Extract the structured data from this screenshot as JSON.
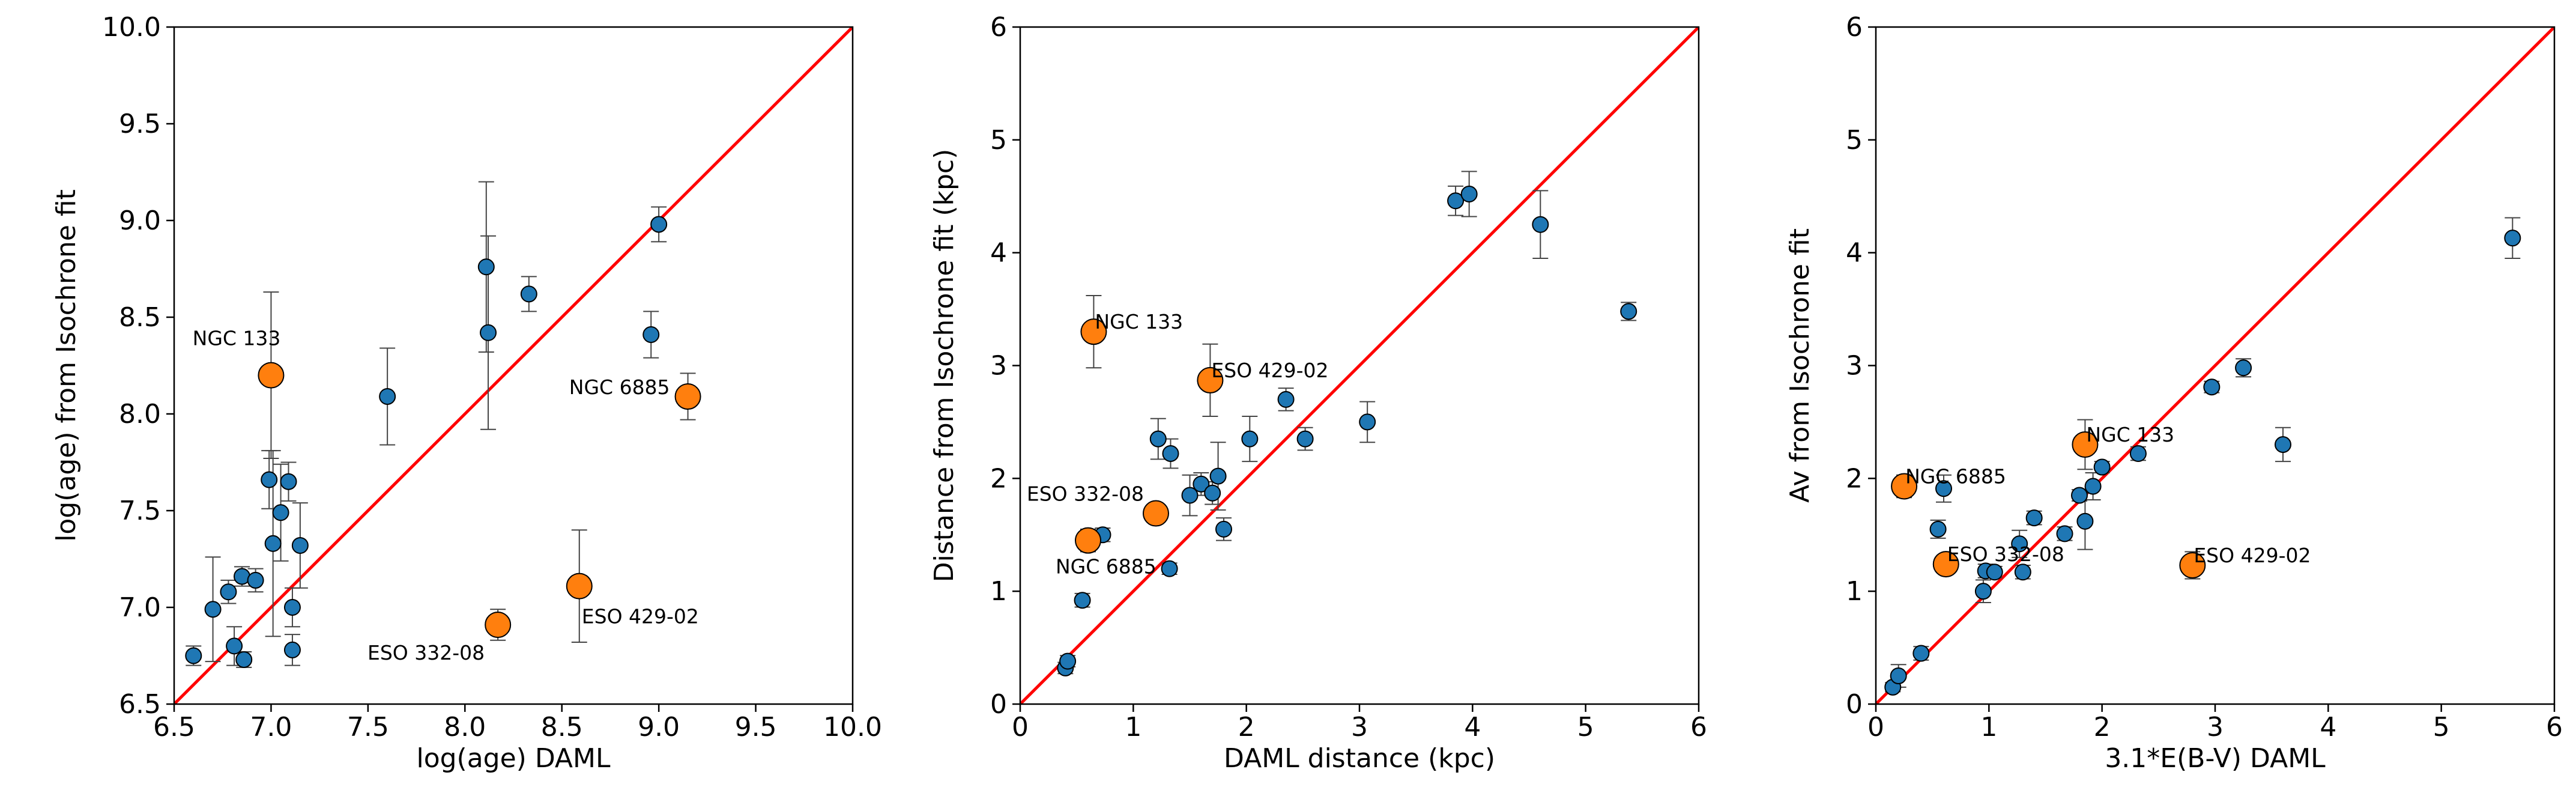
{
  "colors": {
    "point": "#1f77b4",
    "highlight": "#ff7f0e",
    "identity_line": "#ff0000",
    "errorbar": "#444444",
    "edge": "#000000"
  },
  "chart_data": [
    {
      "type": "scatter",
      "title": "",
      "xlabel": "log(age) DAML",
      "ylabel": "log(age) from Isochrone fit",
      "xlim": [
        6.5,
        10.0
      ],
      "ylim": [
        6.5,
        10.0
      ],
      "xticks": [
        6.5,
        7.0,
        7.5,
        8.0,
        8.5,
        9.0,
        9.5,
        10.0
      ],
      "yticks": [
        6.5,
        7.0,
        7.5,
        8.0,
        8.5,
        9.0,
        9.5,
        10.0
      ],
      "tick_labels_x": [
        "6.5",
        "7.0",
        "7.5",
        "8.0",
        "8.5",
        "9.0",
        "9.5",
        "10.0"
      ],
      "tick_labels_y": [
        "6.5",
        "7.0",
        "7.5",
        "8.0",
        "8.5",
        "9.0",
        "9.5",
        "10.0"
      ],
      "identity_line": true,
      "points": [
        {
          "x": 6.6,
          "y": 6.75,
          "err": 0.05
        },
        {
          "x": 6.7,
          "y": 6.99,
          "err": 0.27
        },
        {
          "x": 6.78,
          "y": 7.08,
          "err": 0.06
        },
        {
          "x": 6.81,
          "y": 6.8,
          "err": 0.1
        },
        {
          "x": 6.85,
          "y": 7.16,
          "err": 0.05
        },
        {
          "x": 6.86,
          "y": 6.73,
          "err": 0.04
        },
        {
          "x": 6.92,
          "y": 7.14,
          "err": 0.06
        },
        {
          "x": 6.99,
          "y": 7.66,
          "err": 0.15
        },
        {
          "x": 7.01,
          "y": 7.33,
          "err": 0.48
        },
        {
          "x": 7.05,
          "y": 7.49,
          "err": 0.25
        },
        {
          "x": 7.09,
          "y": 7.65,
          "err": 0.1
        },
        {
          "x": 7.11,
          "y": 7.0,
          "err": 0.1
        },
        {
          "x": 7.11,
          "y": 6.78,
          "err": 0.08
        },
        {
          "x": 7.15,
          "y": 7.32,
          "err": 0.22
        },
        {
          "x": 7.6,
          "y": 8.09,
          "err": 0.25
        },
        {
          "x": 8.11,
          "y": 8.76,
          "err": 0.44
        },
        {
          "x": 8.12,
          "y": 8.42,
          "err": 0.5
        },
        {
          "x": 8.33,
          "y": 8.62,
          "err": 0.09
        },
        {
          "x": 8.96,
          "y": 8.41,
          "err": 0.12
        },
        {
          "x": 9.0,
          "y": 8.98,
          "err": 0.09
        }
      ],
      "highlights": [
        {
          "name": "NGC 133",
          "x": 7.0,
          "y": 8.2,
          "err": 0.43,
          "label_anchor": "end",
          "label_dx": 16,
          "label_dy": -50
        },
        {
          "name": "NGC 6885",
          "x": 9.15,
          "y": 8.09,
          "err": 0.12,
          "label_anchor": "end",
          "label_dx": -30,
          "label_dy": -4
        },
        {
          "name": "ESO 429-02",
          "x": 8.59,
          "y": 7.11,
          "err": 0.29,
          "label_anchor": "start",
          "label_dx": 4,
          "label_dy": 62
        },
        {
          "name": "ESO 332-08",
          "x": 8.17,
          "y": 6.91,
          "err": 0.08,
          "label_anchor": "end",
          "label_dx": -22,
          "label_dy": 58
        }
      ]
    },
    {
      "type": "scatter",
      "title": "",
      "xlabel": "DAML distance (kpc)",
      "ylabel": "Distance from Isochrone fit (kpc)",
      "xlim": [
        0,
        6
      ],
      "ylim": [
        0,
        6
      ],
      "xticks": [
        0,
        1,
        2,
        3,
        4,
        5,
        6
      ],
      "yticks": [
        0,
        1,
        2,
        3,
        4,
        5,
        6
      ],
      "tick_labels_x": [
        "0",
        "1",
        "2",
        "3",
        "4",
        "5",
        "6"
      ],
      "tick_labels_y": [
        "0",
        "1",
        "2",
        "3",
        "4",
        "5",
        "6"
      ],
      "identity_line": true,
      "points": [
        {
          "x": 0.4,
          "y": 0.32,
          "err": 0.05
        },
        {
          "x": 0.42,
          "y": 0.38,
          "err": 0.05
        },
        {
          "x": 0.55,
          "y": 0.92,
          "err": 0.06
        },
        {
          "x": 0.73,
          "y": 1.5,
          "err": 0.06
        },
        {
          "x": 1.22,
          "y": 2.35,
          "err": 0.18
        },
        {
          "x": 1.32,
          "y": 1.2,
          "err": 0.05
        },
        {
          "x": 1.33,
          "y": 2.22,
          "err": 0.13
        },
        {
          "x": 1.5,
          "y": 1.85,
          "err": 0.18
        },
        {
          "x": 1.6,
          "y": 1.95,
          "err": 0.1
        },
        {
          "x": 1.7,
          "y": 1.87,
          "err": 0.1
        },
        {
          "x": 1.75,
          "y": 2.02,
          "err": 0.3
        },
        {
          "x": 1.8,
          "y": 1.55,
          "err": 0.1
        },
        {
          "x": 2.03,
          "y": 2.35,
          "err": 0.2
        },
        {
          "x": 2.35,
          "y": 2.7,
          "err": 0.1
        },
        {
          "x": 2.52,
          "y": 2.35,
          "err": 0.1
        },
        {
          "x": 3.07,
          "y": 2.5,
          "err": 0.18
        },
        {
          "x": 3.85,
          "y": 4.46,
          "err": 0.13
        },
        {
          "x": 3.97,
          "y": 4.52,
          "err": 0.2
        },
        {
          "x": 4.6,
          "y": 4.25,
          "err": 0.3
        },
        {
          "x": 5.38,
          "y": 3.48,
          "err": 0.08
        }
      ],
      "highlights": [
        {
          "name": "NGC 133",
          "x": 0.65,
          "y": 3.3,
          "err": 0.32,
          "label_anchor": "start",
          "label_dx": 2,
          "label_dy": -5
        },
        {
          "name": "ESO 429-02",
          "x": 1.68,
          "y": 2.87,
          "err": 0.32,
          "label_anchor": "start",
          "label_dx": 2,
          "label_dy": -5
        },
        {
          "name": "ESO 332-08",
          "x": 1.2,
          "y": 1.69,
          "err": 0.0,
          "label_anchor": "end",
          "label_dx": -20,
          "label_dy": -21
        },
        {
          "name": "NGC 6885",
          "x": 0.6,
          "y": 1.45,
          "err": 0.1,
          "label_anchor": "start",
          "label_dx": -54,
          "label_dy": 55
        }
      ]
    },
    {
      "type": "scatter",
      "title": "",
      "xlabel": "3.1*E(B-V) DAML",
      "ylabel": "Av from Isochrone fit",
      "xlim": [
        0,
        6
      ],
      "ylim": [
        0,
        6
      ],
      "xticks": [
        0,
        1,
        2,
        3,
        4,
        5,
        6
      ],
      "yticks": [
        0,
        1,
        2,
        3,
        4,
        5,
        6
      ],
      "tick_labels_x": [
        "0",
        "1",
        "2",
        "3",
        "4",
        "5",
        "6"
      ],
      "tick_labels_y": [
        "0",
        "1",
        "2",
        "3",
        "4",
        "5",
        "6"
      ],
      "identity_line": true,
      "points": [
        {
          "x": 0.15,
          "y": 0.15,
          "err": 0.04
        },
        {
          "x": 0.2,
          "y": 0.25,
          "err": 0.1
        },
        {
          "x": 0.4,
          "y": 0.45,
          "err": 0.06
        },
        {
          "x": 0.55,
          "y": 1.55,
          "err": 0.08
        },
        {
          "x": 0.6,
          "y": 1.91,
          "err": 0.12
        },
        {
          "x": 0.95,
          "y": 1.0,
          "err": 0.1
        },
        {
          "x": 0.97,
          "y": 1.18,
          "err": 0.06
        },
        {
          "x": 1.05,
          "y": 1.17,
          "err": 0.05
        },
        {
          "x": 1.27,
          "y": 1.42,
          "err": 0.12
        },
        {
          "x": 1.3,
          "y": 1.17,
          "err": 0.06
        },
        {
          "x": 1.4,
          "y": 1.65,
          "err": 0.06
        },
        {
          "x": 1.67,
          "y": 1.51,
          "err": 0.06
        },
        {
          "x": 1.8,
          "y": 1.85,
          "err": 0.05
        },
        {
          "x": 1.85,
          "y": 1.62,
          "err": 0.25
        },
        {
          "x": 1.92,
          "y": 1.93,
          "err": 0.12
        },
        {
          "x": 2.0,
          "y": 2.1,
          "err": 0.05
        },
        {
          "x": 2.32,
          "y": 2.22,
          "err": 0.06
        },
        {
          "x": 2.97,
          "y": 2.81,
          "err": 0.05
        },
        {
          "x": 3.25,
          "y": 2.98,
          "err": 0.08
        },
        {
          "x": 3.6,
          "y": 2.3,
          "err": 0.15
        },
        {
          "x": 5.63,
          "y": 4.13,
          "err": 0.18
        }
      ],
      "highlights": [
        {
          "name": "NGC 6885",
          "x": 0.25,
          "y": 1.93,
          "err": 0.1,
          "label_anchor": "start",
          "label_dx": 2,
          "label_dy": -5
        },
        {
          "name": "NGC 133",
          "x": 1.85,
          "y": 2.3,
          "err": 0.22,
          "label_anchor": "start",
          "label_dx": 2,
          "label_dy": -5
        },
        {
          "name": "ESO 332-08",
          "x": 0.62,
          "y": 1.24,
          "err": 0.0,
          "label_anchor": "start",
          "label_dx": 2,
          "label_dy": -5
        },
        {
          "name": "ESO 429-02",
          "x": 2.8,
          "y": 1.23,
          "err": 0.12,
          "label_anchor": "start",
          "label_dx": 2,
          "label_dy": -5
        }
      ]
    }
  ]
}
